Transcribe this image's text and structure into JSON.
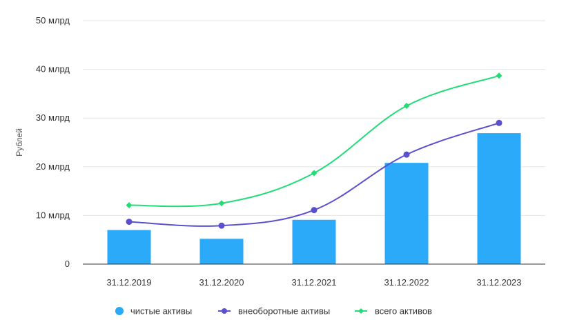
{
  "chart_data": {
    "type": "bar+line",
    "categories": [
      "31.12.2019",
      "31.12.2020",
      "31.12.2021",
      "31.12.2022",
      "31.12.2023"
    ],
    "ylabel": "Рублей",
    "ylim": [
      0,
      50
    ],
    "yticks": [
      {
        "value": 0,
        "label": "0"
      },
      {
        "value": 10,
        "label": "10 млрд"
      },
      {
        "value": 20,
        "label": "20 млрд"
      },
      {
        "value": 30,
        "label": "30 млрд"
      },
      {
        "value": 40,
        "label": "40 млрд"
      },
      {
        "value": 50,
        "label": "50 млрд"
      }
    ],
    "grid": true,
    "legend_position": "bottom",
    "series": [
      {
        "name": "чистые активы",
        "kind": "bar",
        "color": "#2aaaf8",
        "values": [
          7.0,
          5.2,
          9.1,
          20.8,
          26.9
        ]
      },
      {
        "name": "внеоборотные активы",
        "kind": "line",
        "marker": "circle",
        "color": "#5a4fcf",
        "values": [
          8.7,
          7.9,
          11.1,
          22.5,
          29.0
        ]
      },
      {
        "name": "всего активов",
        "kind": "line",
        "marker": "diamond",
        "color": "#22dd77",
        "values": [
          12.1,
          12.5,
          18.7,
          32.5,
          38.7
        ]
      }
    ]
  }
}
